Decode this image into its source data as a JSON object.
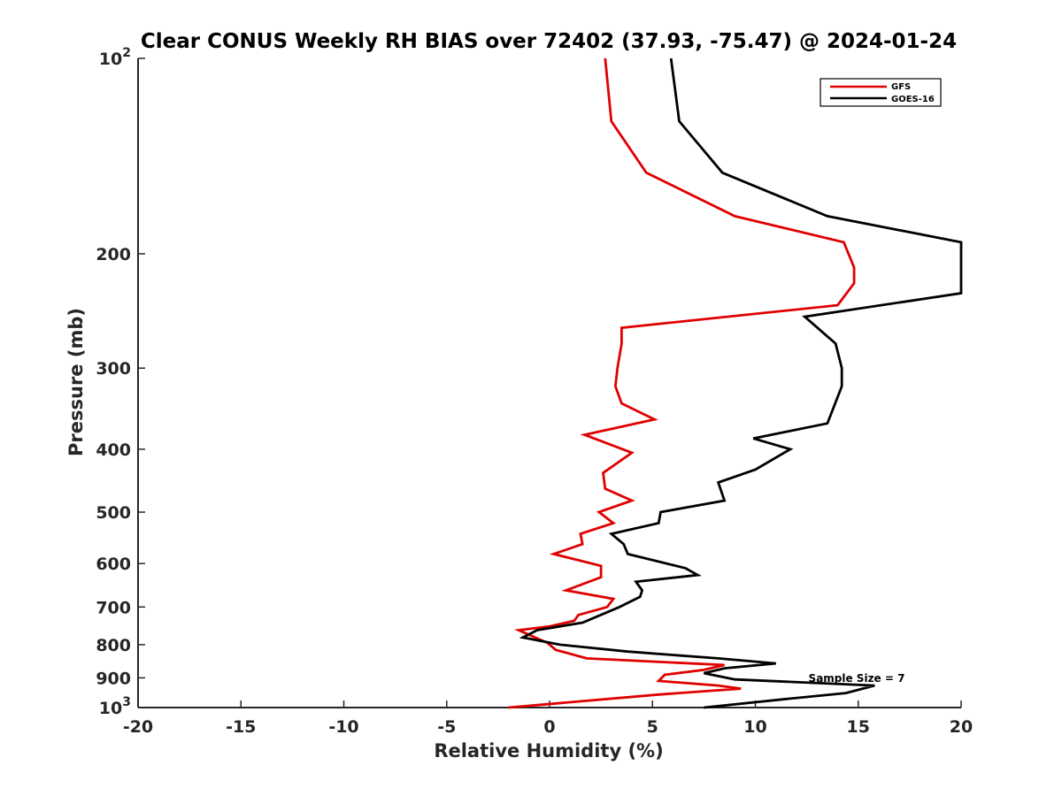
{
  "chart_data": {
    "type": "line",
    "title": "Clear CONUS Weekly RH BIAS over 72402 (37.93, -75.47) @ 2024-01-24",
    "xlabel": "Relative Humidity (%)",
    "ylabel": "Pressure (mb)",
    "xlim": [
      -20,
      20
    ],
    "ylim": [
      100,
      1000
    ],
    "yscale": "log",
    "yreversed": true,
    "xticks": [
      -20,
      -15,
      -10,
      -5,
      0,
      5,
      10,
      15,
      20
    ],
    "xtick_labels": [
      "-20",
      "-15",
      "-10",
      "-5",
      "0",
      "5",
      "10",
      "15",
      "20"
    ],
    "yticks": [
      100,
      200,
      300,
      400,
      500,
      600,
      700,
      800,
      900,
      1000
    ],
    "ytick_labels": [
      {
        "base": "10",
        "exp": "2"
      },
      {
        "base": "200"
      },
      {
        "base": "300"
      },
      {
        "base": "400"
      },
      {
        "base": "500"
      },
      {
        "base": "600"
      },
      {
        "base": "700"
      },
      {
        "base": "800"
      },
      {
        "base": "900"
      },
      {
        "base": "10",
        "exp": "3"
      }
    ],
    "legend_location": "top-right",
    "annotation": "Sample Size = 7",
    "series": [
      {
        "name": "GFS",
        "color": "#e00000",
        "points": [
          [
            2.7,
            100
          ],
          [
            3.0,
            125
          ],
          [
            4.7,
            150
          ],
          [
            9.0,
            175
          ],
          [
            14.3,
            192
          ],
          [
            14.8,
            210
          ],
          [
            14.8,
            222
          ],
          [
            14.0,
            240
          ],
          [
            3.5,
            260
          ],
          [
            3.5,
            275
          ],
          [
            3.3,
            300
          ],
          [
            3.2,
            320
          ],
          [
            3.5,
            340
          ],
          [
            5.1,
            360
          ],
          [
            1.7,
            380
          ],
          [
            4.0,
            405
          ],
          [
            2.6,
            435
          ],
          [
            2.7,
            460
          ],
          [
            4.0,
            480
          ],
          [
            2.4,
            500
          ],
          [
            3.1,
            520
          ],
          [
            1.5,
            540
          ],
          [
            1.6,
            560
          ],
          [
            0.2,
            580
          ],
          [
            2.5,
            605
          ],
          [
            2.5,
            630
          ],
          [
            0.8,
            660
          ],
          [
            3.1,
            680
          ],
          [
            2.8,
            700
          ],
          [
            1.4,
            720
          ],
          [
            1.2,
            735
          ],
          [
            0.0,
            750
          ],
          [
            -1.5,
            760
          ],
          [
            -0.1,
            795
          ],
          [
            0.3,
            815
          ],
          [
            1.8,
            840
          ],
          [
            8.5,
            860
          ],
          [
            7.5,
            875
          ],
          [
            5.6,
            890
          ],
          [
            5.3,
            910
          ],
          [
            8.2,
            925
          ],
          [
            9.3,
            935
          ],
          [
            5.3,
            955
          ],
          [
            -2.0,
            1000
          ]
        ]
      },
      {
        "name": "GOES-16",
        "color": "#000000",
        "points": [
          [
            5.9,
            100
          ],
          [
            6.3,
            125
          ],
          [
            8.4,
            150
          ],
          [
            13.5,
            175
          ],
          [
            20.0,
            192
          ],
          [
            20.0,
            230
          ],
          [
            12.4,
            250
          ],
          [
            13.9,
            275
          ],
          [
            14.2,
            300
          ],
          [
            14.2,
            320
          ],
          [
            13.8,
            345
          ],
          [
            13.5,
            365
          ],
          [
            9.9,
            385
          ],
          [
            11.7,
            400
          ],
          [
            10.0,
            430
          ],
          [
            8.2,
            450
          ],
          [
            8.5,
            480
          ],
          [
            5.4,
            500
          ],
          [
            5.3,
            520
          ],
          [
            3.0,
            540
          ],
          [
            3.6,
            560
          ],
          [
            3.8,
            580
          ],
          [
            6.6,
            610
          ],
          [
            7.2,
            625
          ],
          [
            4.2,
            640
          ],
          [
            4.5,
            660
          ],
          [
            4.4,
            675
          ],
          [
            3.4,
            700
          ],
          [
            1.6,
            740
          ],
          [
            -0.6,
            760
          ],
          [
            -1.3,
            780
          ],
          [
            0.5,
            800
          ],
          [
            3.8,
            820
          ],
          [
            8.2,
            840
          ],
          [
            11.0,
            855
          ],
          [
            8.5,
            870
          ],
          [
            7.5,
            885
          ],
          [
            9.0,
            905
          ],
          [
            15.8,
            925
          ],
          [
            14.4,
            950
          ],
          [
            11.5,
            970
          ],
          [
            7.5,
            1000
          ]
        ]
      }
    ]
  }
}
